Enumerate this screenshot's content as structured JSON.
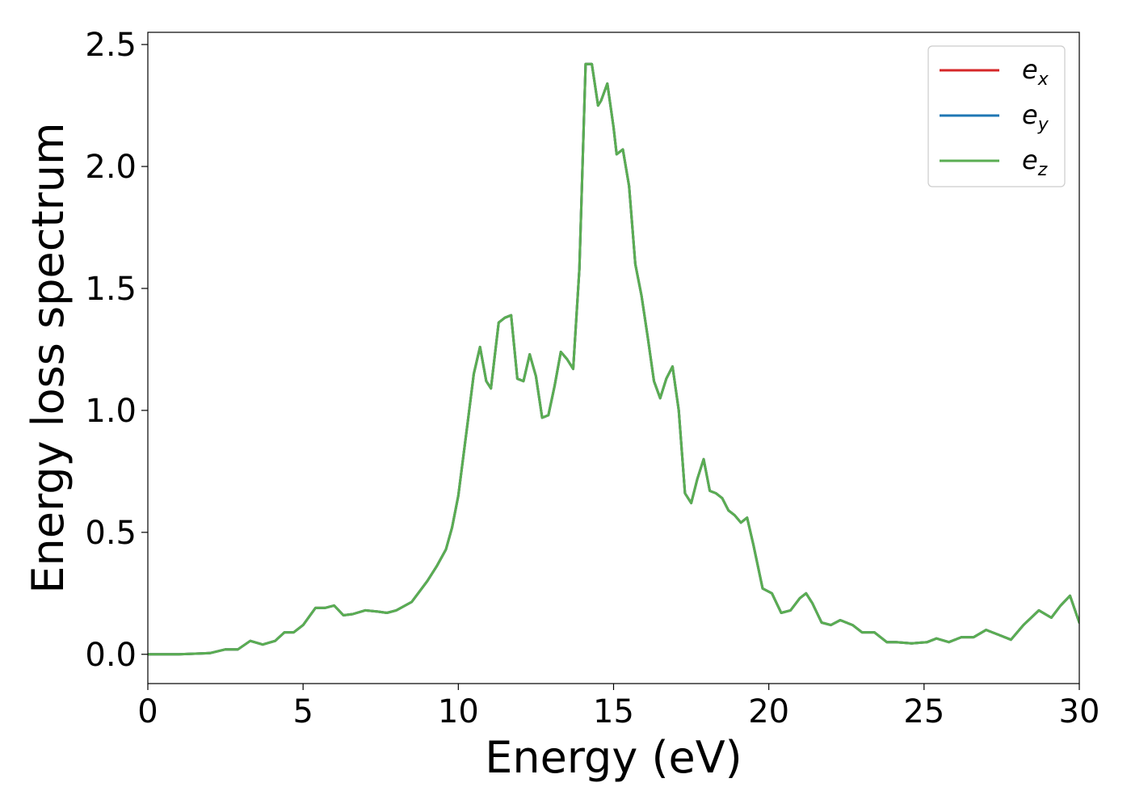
{
  "chart_data": {
    "type": "line",
    "title": "",
    "xlabel": "Energy (eV)",
    "ylabel": "Energy loss spectrum",
    "xlim": [
      0,
      30
    ],
    "ylim": [
      -0.12,
      2.55
    ],
    "xticks": [
      0,
      5,
      10,
      15,
      20,
      25,
      30
    ],
    "xtick_labels": [
      "0",
      "5",
      "10",
      "15",
      "20",
      "25",
      "30"
    ],
    "yticks": [
      0.0,
      0.5,
      1.0,
      1.5,
      2.0,
      2.5
    ],
    "ytick_labels": [
      "0.0",
      "0.5",
      "1.0",
      "1.5",
      "2.0",
      "2.5"
    ],
    "grid": false,
    "legend": {
      "placement": "top-right"
    },
    "x": [
      0,
      1,
      2,
      2.5,
      2.9,
      3.3,
      3.7,
      4.1,
      4.4,
      4.7,
      5.0,
      5.4,
      5.7,
      6.0,
      6.3,
      6.6,
      7.0,
      7.4,
      7.7,
      8.0,
      8.5,
      9.0,
      9.3,
      9.6,
      9.8,
      10.0,
      10.3,
      10.5,
      10.7,
      10.9,
      11.05,
      11.3,
      11.5,
      11.7,
      11.9,
      12.1,
      12.3,
      12.5,
      12.7,
      12.9,
      13.1,
      13.3,
      13.5,
      13.7,
      13.9,
      14.1,
      14.3,
      14.5,
      14.6,
      14.8,
      15.0,
      15.1,
      15.3,
      15.5,
      15.7,
      15.9,
      16.1,
      16.3,
      16.5,
      16.7,
      16.9,
      17.1,
      17.3,
      17.5,
      17.7,
      17.9,
      18.1,
      18.3,
      18.5,
      18.7,
      18.9,
      19.1,
      19.3,
      19.5,
      19.8,
      20.1,
      20.4,
      20.7,
      21.0,
      21.2,
      21.4,
      21.7,
      22.0,
      22.3,
      22.7,
      23.0,
      23.4,
      23.8,
      24.1,
      24.6,
      25.1,
      25.4,
      25.8,
      26.2,
      26.6,
      27.0,
      27.4,
      27.8,
      28.2,
      28.7,
      29.1,
      29.4,
      29.7,
      30.0
    ],
    "series": [
      {
        "name": "e_x",
        "color": "#d62728",
        "values": [
          0.0,
          0.0,
          0.005,
          0.02,
          0.02,
          0.055,
          0.04,
          0.055,
          0.09,
          0.09,
          0.12,
          0.19,
          0.19,
          0.2,
          0.16,
          0.165,
          0.18,
          0.175,
          0.17,
          0.18,
          0.215,
          0.3,
          0.36,
          0.43,
          0.52,
          0.65,
          0.95,
          1.15,
          1.26,
          1.12,
          1.09,
          1.36,
          1.38,
          1.39,
          1.13,
          1.12,
          1.23,
          1.14,
          0.97,
          0.98,
          1.1,
          1.24,
          1.21,
          1.17,
          1.58,
          2.42,
          2.42,
          2.25,
          2.27,
          2.34,
          2.16,
          2.05,
          2.07,
          1.92,
          1.6,
          1.47,
          1.3,
          1.12,
          1.05,
          1.13,
          1.18,
          1.0,
          0.66,
          0.62,
          0.72,
          0.8,
          0.67,
          0.66,
          0.64,
          0.59,
          0.57,
          0.54,
          0.56,
          0.45,
          0.27,
          0.25,
          0.17,
          0.18,
          0.23,
          0.25,
          0.21,
          0.13,
          0.12,
          0.14,
          0.12,
          0.09,
          0.09,
          0.05,
          0.05,
          0.045,
          0.05,
          0.065,
          0.05,
          0.07,
          0.07,
          0.1,
          0.08,
          0.06,
          0.12,
          0.18,
          0.15,
          0.2,
          0.24,
          0.13
        ]
      },
      {
        "name": "e_y",
        "color": "#1f77b4",
        "values": [
          0.0,
          0.0,
          0.005,
          0.02,
          0.02,
          0.055,
          0.04,
          0.055,
          0.09,
          0.09,
          0.12,
          0.19,
          0.19,
          0.2,
          0.16,
          0.165,
          0.18,
          0.175,
          0.17,
          0.18,
          0.215,
          0.3,
          0.36,
          0.43,
          0.52,
          0.65,
          0.95,
          1.15,
          1.26,
          1.12,
          1.09,
          1.36,
          1.38,
          1.39,
          1.13,
          1.12,
          1.23,
          1.14,
          0.97,
          0.98,
          1.1,
          1.24,
          1.21,
          1.17,
          1.58,
          2.42,
          2.42,
          2.25,
          2.27,
          2.34,
          2.16,
          2.05,
          2.07,
          1.92,
          1.6,
          1.47,
          1.3,
          1.12,
          1.05,
          1.13,
          1.18,
          1.0,
          0.66,
          0.62,
          0.72,
          0.8,
          0.67,
          0.66,
          0.64,
          0.59,
          0.57,
          0.54,
          0.56,
          0.45,
          0.27,
          0.25,
          0.17,
          0.18,
          0.23,
          0.25,
          0.21,
          0.13,
          0.12,
          0.14,
          0.12,
          0.09,
          0.09,
          0.05,
          0.05,
          0.045,
          0.05,
          0.065,
          0.05,
          0.07,
          0.07,
          0.1,
          0.08,
          0.06,
          0.12,
          0.18,
          0.15,
          0.2,
          0.24,
          0.13
        ]
      },
      {
        "name": "e_z",
        "color": "#5aad52",
        "values": [
          0.0,
          0.0,
          0.005,
          0.02,
          0.02,
          0.055,
          0.04,
          0.055,
          0.09,
          0.09,
          0.12,
          0.19,
          0.19,
          0.2,
          0.16,
          0.165,
          0.18,
          0.175,
          0.17,
          0.18,
          0.215,
          0.3,
          0.36,
          0.43,
          0.52,
          0.65,
          0.95,
          1.15,
          1.26,
          1.12,
          1.09,
          1.36,
          1.38,
          1.39,
          1.13,
          1.12,
          1.23,
          1.14,
          0.97,
          0.98,
          1.1,
          1.24,
          1.21,
          1.17,
          1.58,
          2.42,
          2.42,
          2.25,
          2.27,
          2.34,
          2.16,
          2.05,
          2.07,
          1.92,
          1.6,
          1.47,
          1.3,
          1.12,
          1.05,
          1.13,
          1.18,
          1.0,
          0.66,
          0.62,
          0.72,
          0.8,
          0.67,
          0.66,
          0.64,
          0.59,
          0.57,
          0.54,
          0.56,
          0.45,
          0.27,
          0.25,
          0.17,
          0.18,
          0.23,
          0.25,
          0.21,
          0.13,
          0.12,
          0.14,
          0.12,
          0.09,
          0.09,
          0.05,
          0.05,
          0.045,
          0.05,
          0.065,
          0.05,
          0.07,
          0.07,
          0.1,
          0.08,
          0.06,
          0.12,
          0.18,
          0.15,
          0.2,
          0.24,
          0.13
        ]
      }
    ],
    "legend_entries": [
      {
        "base": "e",
        "sub": "x",
        "color": "#d62728"
      },
      {
        "base": "e",
        "sub": "y",
        "color": "#1f77b4"
      },
      {
        "base": "e",
        "sub": "z",
        "color": "#5aad52"
      }
    ]
  }
}
